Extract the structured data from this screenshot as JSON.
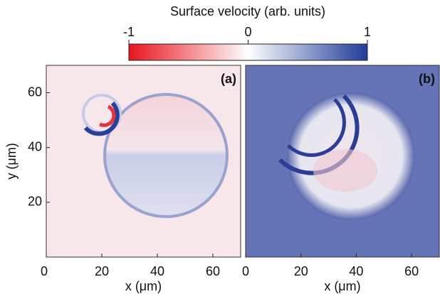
{
  "chart_data": {
    "type": "heatmap",
    "colorbar": {
      "label": "Surface velocity (arb. units)",
      "lim": [
        -1,
        1
      ],
      "ticks": [
        -1,
        0,
        1
      ],
      "colors": [
        "#e8141c",
        "#ffffff",
        "#1f3c98"
      ]
    },
    "panels": [
      {
        "label": "(a)",
        "xlabel": "x (μm)",
        "ylabel": "y (μm)",
        "xlim": [
          0,
          70
        ],
        "ylim": [
          0,
          70
        ],
        "xticks": [
          0,
          20,
          40,
          60
        ],
        "yticks": [
          20,
          40,
          60
        ]
      },
      {
        "label": "(b)",
        "xlabel": "x (μm)",
        "xlim": [
          0,
          70
        ],
        "ylim": [
          0,
          70
        ],
        "xticks": [
          0,
          20,
          40,
          60
        ]
      }
    ]
  }
}
